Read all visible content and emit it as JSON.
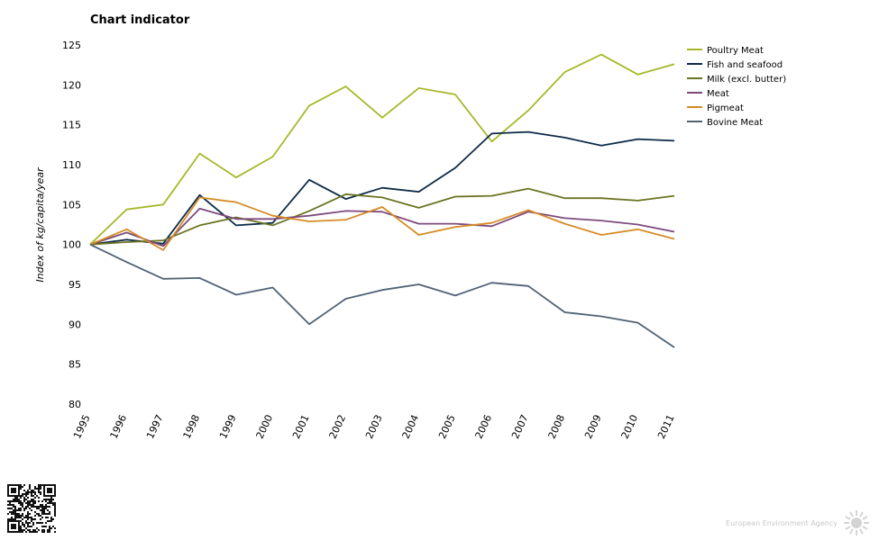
{
  "footer": {
    "brand": "European Environment Agency"
  },
  "chart_data": {
    "type": "line",
    "title": "Chart indicator",
    "xlabel": "",
    "ylabel": "Index of kg/capita/year",
    "ylim": [
      80,
      125
    ],
    "yticks": [
      80,
      85,
      90,
      95,
      100,
      105,
      110,
      115,
      120,
      125
    ],
    "categories": [
      "1995",
      "1996",
      "1997",
      "1998",
      "1999",
      "2000",
      "2001",
      "2002",
      "2003",
      "2004",
      "2005",
      "2006",
      "2007",
      "2008",
      "2009",
      "2010",
      "2011"
    ],
    "grid": false,
    "legend_position": "right",
    "series": [
      {
        "name": "Poultry Meat",
        "color": "#a8b82a",
        "values": [
          100,
          104.4,
          105,
          111.4,
          108.4,
          111,
          117.4,
          119.8,
          115.9,
          119.6,
          118.8,
          112.9,
          116.8,
          121.6,
          123.8,
          121.3,
          122.6
        ]
      },
      {
        "name": "Fish and seafood",
        "color": "#0c2a48",
        "values": [
          100,
          100.6,
          100.1,
          106.2,
          102.4,
          102.7,
          108.1,
          105.7,
          107.1,
          106.6,
          109.6,
          113.9,
          114.1,
          113.4,
          112.4,
          113.2,
          113
        ]
      },
      {
        "name": "Milk (excl. butter)",
        "color": "#6b7422",
        "values": [
          100,
          100.3,
          100.5,
          102.4,
          103.4,
          102.4,
          104.2,
          106.3,
          105.9,
          104.6,
          106,
          106.1,
          107,
          105.8,
          105.8,
          105.5,
          106.1
        ]
      },
      {
        "name": "Meat",
        "color": "#7d4a7d",
        "values": [
          100,
          101.5,
          99.8,
          104.5,
          103.2,
          103.2,
          103.6,
          104.2,
          104.1,
          102.6,
          102.6,
          102.3,
          104.1,
          103.3,
          103,
          102.5,
          101.6
        ]
      },
      {
        "name": "Pigmeat",
        "color": "#d68b25",
        "values": [
          100,
          101.9,
          99.3,
          105.9,
          105.3,
          103.6,
          102.9,
          103.1,
          104.7,
          101.2,
          102.2,
          102.7,
          104.3,
          102.6,
          101.2,
          101.9,
          100.7
        ]
      },
      {
        "name": "Bovine Meat",
        "color": "#4f6275",
        "values": [
          100,
          97.8,
          95.7,
          95.8,
          93.7,
          94.6,
          90,
          93.2,
          94.3,
          95,
          93.6,
          95.2,
          94.8,
          91.5,
          91,
          90.2,
          87.1
        ]
      }
    ]
  }
}
